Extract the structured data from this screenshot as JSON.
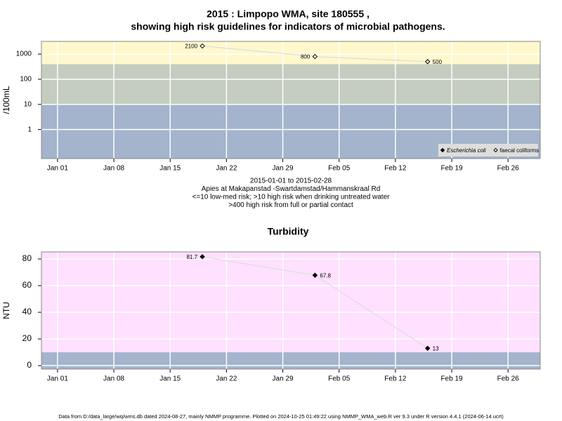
{
  "chart_data": [
    {
      "type": "line",
      "title": [
        "2015 : Limpopo WMA, site 180555 ,",
        "showing high risk guidelines for indicators of microbial pathogens."
      ],
      "y_label": "/100mL",
      "notes": [
        "2015-01-01 to 2015-02-28",
        "Apies at Makapanstad -Swartdamstad/Hammanskraal Rd",
        "<=10 low-med risk; >10 high risk when drinking untreated water",
        ">400 high risk from full or partial contact"
      ],
      "x": [
        "2015-01-19",
        "2015-02-02",
        "2015-02-16"
      ],
      "series": [
        {
          "name": "Escherichia coli",
          "color": "#000000",
          "marker": "filled",
          "values": [
            null,
            null,
            null
          ]
        },
        {
          "name": "faecal coliforms",
          "color": "#000000",
          "marker": "open",
          "values": [
            2100,
            800,
            500
          ]
        }
      ],
      "xlim": [
        "2014-12-30",
        "2015-03-02"
      ],
      "xticks": [
        {
          "value": "2015-01-01",
          "label": "Jan 01"
        },
        {
          "value": "2015-01-08",
          "label": "Jan 08"
        },
        {
          "value": "2015-01-15",
          "label": "Jan 15"
        },
        {
          "value": "2015-01-22",
          "label": "Jan 22"
        },
        {
          "value": "2015-01-29",
          "label": "Jan 29"
        },
        {
          "value": "2015-02-05",
          "label": "Feb 05"
        },
        {
          "value": "2015-02-12",
          "label": "Feb 12"
        },
        {
          "value": "2015-02-19",
          "label": "Feb 19"
        },
        {
          "value": "2015-02-26",
          "label": "Feb 26"
        }
      ],
      "ylim": [
        0.07,
        3200
      ],
      "yticks": [
        1,
        10,
        100,
        1000
      ],
      "log_y": true,
      "grid": true,
      "thresholds": [
        10,
        400
      ],
      "band_colors": [
        "#a3b4cc",
        "#c5ccc0",
        "#fff8cc"
      ],
      "legend": "bottom-right"
    },
    {
      "type": "line",
      "title": [
        "Turbidity"
      ],
      "y_label": "NTU",
      "x": [
        "2015-01-19",
        "2015-02-02",
        "2015-02-16"
      ],
      "series": [
        {
          "name": "Turbidity",
          "color": "#000000",
          "marker": "filled",
          "values": [
            81.7,
            67.8,
            13
          ]
        }
      ],
      "xlim": [
        "2014-12-30",
        "2015-03-02"
      ],
      "xticks": [
        {
          "value": "2015-01-01",
          "label": "Jan 01"
        },
        {
          "value": "2015-01-08",
          "label": "Jan 08"
        },
        {
          "value": "2015-01-15",
          "label": "Jan 15"
        },
        {
          "value": "2015-01-22",
          "label": "Jan 22"
        },
        {
          "value": "2015-01-29",
          "label": "Jan 29"
        },
        {
          "value": "2015-02-05",
          "label": "Feb 05"
        },
        {
          "value": "2015-02-12",
          "label": "Feb 12"
        },
        {
          "value": "2015-02-19",
          "label": "Feb 19"
        },
        {
          "value": "2015-02-26",
          "label": "Feb 26"
        }
      ],
      "ylim": [
        -2.6,
        85.3
      ],
      "yticks": [
        0,
        20,
        40,
        60,
        80
      ],
      "log_y": false,
      "grid": true,
      "thresholds": [
        10
      ],
      "band_colors": [
        "#a3b4cc",
        "#ffe0ff"
      ]
    }
  ],
  "footer": "Data from D:/data_large/wq/wms.db dated 2024-08-27, mainly NMMP programme. Plotted on 2024-10-25 01:49:22 using NMMP_WMA_web.R ver 9.3 under R version 4.4.1 (2024-06-14 ucrt)"
}
